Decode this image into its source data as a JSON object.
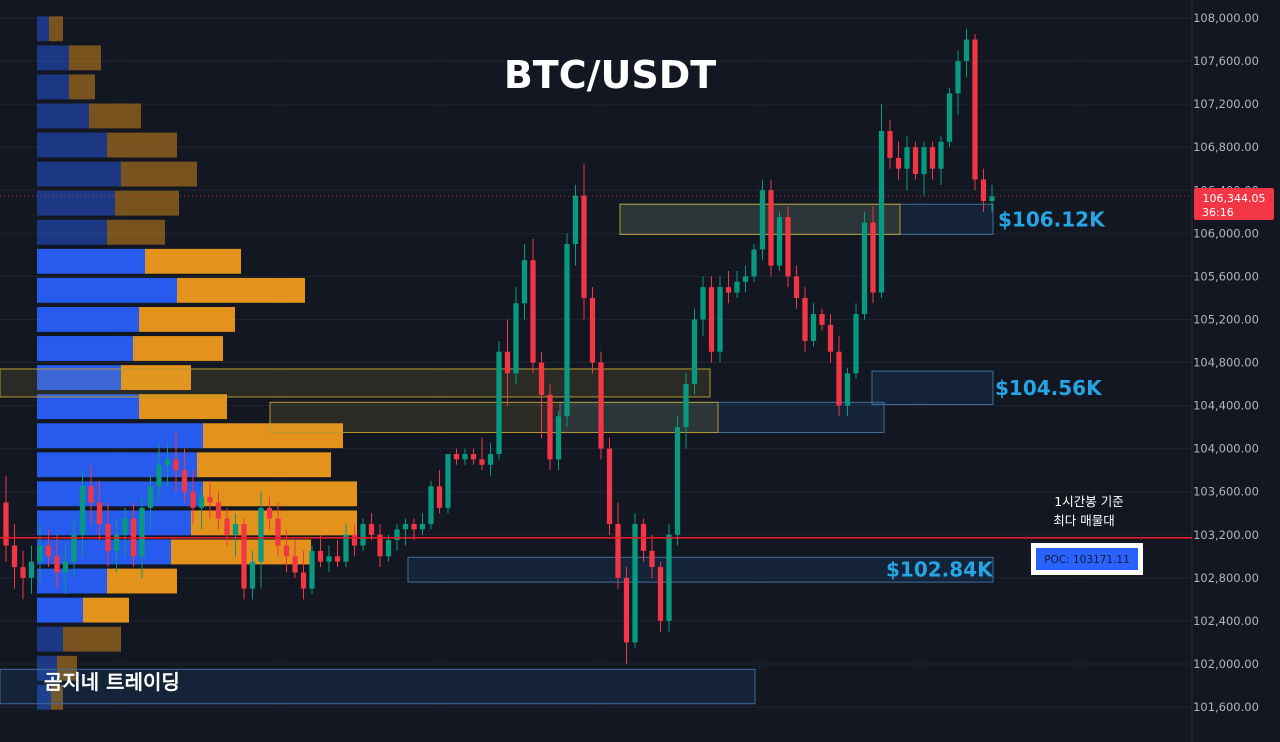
{
  "chart_data": {
    "type": "candlestick",
    "title": "BTC/USDT",
    "watermark": "곰지네 트레이딩",
    "timeframe_note": [
      "1시간봉 기준",
      "최다 매물대"
    ],
    "y_axis": {
      "position": "right",
      "range": [
        101400,
        108200
      ],
      "ticks": [
        "108,000.00",
        "107,600.00",
        "107,200.00",
        "106,800.00",
        "106,400.00",
        "106,000.00",
        "105,600.00",
        "105,200.00",
        "104,800.00",
        "104,400.00",
        "104,000.00",
        "103,600.00",
        "103,200.00",
        "102,800.00",
        "102,400.00",
        "102,000.00",
        "101,600.00"
      ],
      "tick_values": [
        108000,
        107600,
        107200,
        106800,
        106400,
        106000,
        105600,
        105200,
        104800,
        104400,
        104000,
        103600,
        103200,
        102800,
        102400,
        102000,
        101600
      ]
    },
    "grid": true,
    "last_price": {
      "value": 106344.05,
      "label": "106,344.05",
      "countdown": "36:16"
    },
    "poc": {
      "value": 103171.11,
      "label": "POC: 103171.11",
      "color": "#2962ff"
    },
    "zones": [
      {
        "label": "$106.12K",
        "top": 106270,
        "bottom": 105990,
        "color": "#2196f3",
        "style": "blue"
      },
      {
        "label": "",
        "top": 106270,
        "bottom": 105990,
        "color": "#d4b43c",
        "style": "yellow"
      },
      {
        "label": "$104.56K",
        "top": 104720,
        "bottom": 104410,
        "color": "#2196f3",
        "style": "blue"
      },
      {
        "label": "",
        "top": 104430,
        "bottom": 104150,
        "color": "#2196f3",
        "style": "blue"
      },
      {
        "label": "",
        "top": 104430,
        "bottom": 104150,
        "color": "#d4b43c",
        "style": "yellow"
      },
      {
        "label": "",
        "top": 104740,
        "bottom": 104480,
        "color": "#d4b43c",
        "style": "yellow"
      },
      {
        "label": "$102.84K",
        "top": 102990,
        "bottom": 102760,
        "color": "#2196f3",
        "style": "blue"
      },
      {
        "label": "",
        "top": 101950,
        "bottom": 101630,
        "color": "#2196f3",
        "style": "blue"
      }
    ],
    "volume_profile": {
      "buy_color": "#2962ff",
      "sell_color": "#f59d1b",
      "rows": [
        {
          "price": 107900,
          "buy": 12,
          "sell": 14
        },
        {
          "price": 107630,
          "buy": 32,
          "sell": 32
        },
        {
          "price": 107360,
          "buy": 32,
          "sell": 26
        },
        {
          "price": 107090,
          "buy": 52,
          "sell": 52
        },
        {
          "price": 106820,
          "buy": 70,
          "sell": 70
        },
        {
          "price": 106550,
          "buy": 84,
          "sell": 76
        },
        {
          "price": 106280,
          "buy": 78,
          "sell": 64
        },
        {
          "price": 106010,
          "buy": 70,
          "sell": 58
        },
        {
          "price": 105740,
          "buy": 108,
          "sell": 96
        },
        {
          "price": 105470,
          "buy": 140,
          "sell": 128
        },
        {
          "price": 105200,
          "buy": 102,
          "sell": 96
        },
        {
          "price": 104930,
          "buy": 96,
          "sell": 90
        },
        {
          "price": 104660,
          "buy": 84,
          "sell": 70
        },
        {
          "price": 104390,
          "buy": 102,
          "sell": 88
        },
        {
          "price": 104120,
          "buy": 166,
          "sell": 140
        },
        {
          "price": 103850,
          "buy": 160,
          "sell": 134
        },
        {
          "price": 103580,
          "buy": 166,
          "sell": 154
        },
        {
          "price": 103310,
          "buy": 154,
          "sell": 166
        },
        {
          "price": 103040,
          "buy": 134,
          "sell": 140
        },
        {
          "price": 102770,
          "buy": 70,
          "sell": 70
        },
        {
          "price": 102500,
          "buy": 46,
          "sell": 46
        },
        {
          "price": 102230,
          "buy": 26,
          "sell": 58
        },
        {
          "price": 101960,
          "buy": 20,
          "sell": 20
        },
        {
          "price": 101690,
          "buy": 14,
          "sell": 12
        }
      ]
    },
    "candles": [
      [
        103500,
        103750,
        102950,
        103100
      ],
      [
        103100,
        103300,
        102700,
        102900
      ],
      [
        102900,
        103050,
        102600,
        102800
      ],
      [
        102800,
        103100,
        102650,
        102950
      ],
      [
        102950,
        103300,
        102750,
        103100
      ],
      [
        103100,
        103250,
        102900,
        103000
      ],
      [
        103000,
        103200,
        102700,
        102850
      ],
      [
        102850,
        103100,
        102650,
        102950
      ],
      [
        102950,
        103350,
        102800,
        103200
      ],
      [
        103200,
        103800,
        103000,
        103650
      ],
      [
        103650,
        103850,
        103300,
        103500
      ],
      [
        103500,
        103700,
        103150,
        103300
      ],
      [
        103300,
        103500,
        102900,
        103050
      ],
      [
        103050,
        103350,
        102850,
        103200
      ],
      [
        103200,
        103450,
        103000,
        103350
      ],
      [
        103350,
        103500,
        102900,
        103000
      ],
      [
        103000,
        103550,
        102800,
        103450
      ],
      [
        103450,
        103750,
        103250,
        103650
      ],
      [
        103650,
        104050,
        103500,
        103850
      ],
      [
        103850,
        104050,
        103650,
        103900
      ],
      [
        103900,
        104150,
        103600,
        103800
      ],
      [
        103800,
        104000,
        103500,
        103600
      ],
      [
        103600,
        103800,
        103300,
        103450
      ],
      [
        103450,
        103650,
        103250,
        103550
      ],
      [
        103550,
        103700,
        103350,
        103500
      ],
      [
        103500,
        103600,
        103250,
        103350
      ],
      [
        103350,
        103450,
        103100,
        103200
      ],
      [
        103200,
        103400,
        103000,
        103300
      ],
      [
        103300,
        103350,
        102600,
        102700
      ],
      [
        102700,
        103050,
        102600,
        102950
      ],
      [
        102950,
        103600,
        102700,
        103450
      ],
      [
        103450,
        103550,
        103250,
        103350
      ],
      [
        103350,
        103500,
        103000,
        103100
      ],
      [
        103100,
        103250,
        102850,
        103000
      ],
      [
        103000,
        103150,
        102800,
        102850
      ],
      [
        102850,
        103050,
        102600,
        102700
      ],
      [
        102700,
        103100,
        102650,
        103050
      ],
      [
        103050,
        103200,
        102900,
        102950
      ],
      [
        102950,
        103100,
        102850,
        103000
      ],
      [
        103000,
        103150,
        102900,
        102950
      ],
      [
        102950,
        103300,
        102900,
        103200
      ],
      [
        103200,
        103300,
        103000,
        103100
      ],
      [
        103100,
        103350,
        103050,
        103300
      ],
      [
        103300,
        103400,
        103150,
        103200
      ],
      [
        103200,
        103300,
        102900,
        103000
      ],
      [
        103000,
        103200,
        102950,
        103150
      ],
      [
        103150,
        103300,
        103050,
        103250
      ],
      [
        103250,
        103350,
        103100,
        103300
      ],
      [
        103300,
        103350,
        103150,
        103250
      ],
      [
        103250,
        103400,
        103200,
        103300
      ],
      [
        103300,
        103700,
        103250,
        103650
      ],
      [
        103650,
        103800,
        103400,
        103450
      ],
      [
        103450,
        103950,
        103400,
        103950
      ],
      [
        103950,
        104000,
        103850,
        103900
      ],
      [
        103900,
        104000,
        103850,
        103950
      ],
      [
        103950,
        104000,
        103850,
        103900
      ],
      [
        103900,
        104100,
        103800,
        103850
      ],
      [
        103850,
        104050,
        103750,
        103950
      ],
      [
        103950,
        105000,
        103900,
        104900
      ],
      [
        104900,
        105200,
        104400,
        104700
      ],
      [
        104700,
        105500,
        104600,
        105350
      ],
      [
        105350,
        105900,
        105200,
        105750
      ],
      [
        105750,
        105950,
        104700,
        104800
      ],
      [
        104800,
        104900,
        104100,
        104500
      ],
      [
        104500,
        104600,
        103800,
        103900
      ],
      [
        103900,
        104350,
        103800,
        104300
      ],
      [
        104300,
        106000,
        104200,
        105900
      ],
      [
        105900,
        106450,
        105700,
        106350
      ],
      [
        106350,
        106650,
        105200,
        105400
      ],
      [
        105400,
        105500,
        104700,
        104800
      ],
      [
        104800,
        104900,
        103900,
        104000
      ],
      [
        104000,
        104100,
        103200,
        103300
      ],
      [
        103300,
        103500,
        102700,
        102800
      ],
      [
        102800,
        102900,
        102000,
        102200
      ],
      [
        102200,
        103400,
        102150,
        103300
      ],
      [
        103300,
        103350,
        102950,
        103050
      ],
      [
        103050,
        103200,
        102800,
        102900
      ],
      [
        102900,
        102950,
        102300,
        102400
      ],
      [
        102400,
        103300,
        102300,
        103200
      ],
      [
        103200,
        104300,
        103100,
        104200
      ],
      [
        104200,
        104700,
        104000,
        104600
      ],
      [
        104600,
        105300,
        104500,
        105200
      ],
      [
        105200,
        105600,
        105050,
        105500
      ],
      [
        105500,
        105600,
        104800,
        104900
      ],
      [
        104900,
        105600,
        104800,
        105500
      ],
      [
        105500,
        105650,
        105350,
        105450
      ],
      [
        105450,
        105650,
        105400,
        105550
      ],
      [
        105550,
        105700,
        105450,
        105600
      ],
      [
        105600,
        105900,
        105550,
        105850
      ],
      [
        105850,
        106500,
        105750,
        106400
      ],
      [
        106400,
        106500,
        105600,
        105700
      ],
      [
        105700,
        106200,
        105650,
        106150
      ],
      [
        106150,
        106250,
        105500,
        105600
      ],
      [
        105600,
        105700,
        105300,
        105400
      ],
      [
        105400,
        105500,
        104900,
        105000
      ],
      [
        105000,
        105350,
        104950,
        105250
      ],
      [
        105250,
        105300,
        105100,
        105150
      ],
      [
        105150,
        105250,
        104800,
        104900
      ],
      [
        104900,
        105050,
        104300,
        104400
      ],
      [
        104400,
        104750,
        104300,
        104700
      ],
      [
        104700,
        105350,
        104650,
        105250
      ],
      [
        105250,
        106200,
        105200,
        106100
      ],
      [
        106100,
        106250,
        105350,
        105450
      ],
      [
        105450,
        107200,
        105400,
        106950
      ],
      [
        106950,
        107050,
        106600,
        106700
      ],
      [
        106700,
        106850,
        106500,
        106600
      ],
      [
        106600,
        106900,
        106400,
        106800
      ],
      [
        106800,
        106850,
        106500,
        106550
      ],
      [
        106550,
        106850,
        106350,
        106800
      ],
      [
        106800,
        106850,
        106500,
        106600
      ],
      [
        106600,
        106900,
        106450,
        106850
      ],
      [
        106850,
        107350,
        106800,
        107300
      ],
      [
        107300,
        107700,
        107100,
        107600
      ],
      [
        107600,
        107900,
        107450,
        107800
      ],
      [
        107800,
        107850,
        106400,
        106500
      ],
      [
        106500,
        106600,
        106200,
        106300
      ],
      [
        106300,
        106450,
        106200,
        106344
      ]
    ]
  }
}
